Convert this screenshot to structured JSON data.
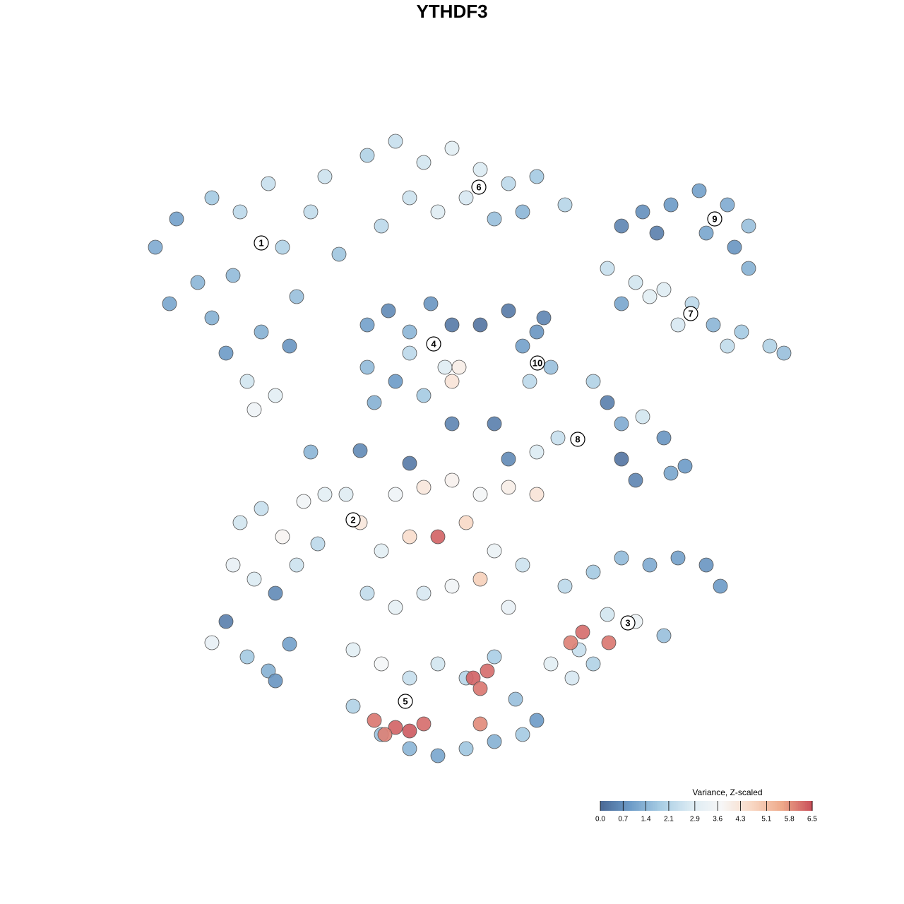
{
  "chart_data": {
    "type": "scatter",
    "title": "YTHDF3",
    "xlim": [
      0,
      128
    ],
    "ylim": [
      0,
      128
    ],
    "x": [
      22,
      25,
      28,
      30,
      32,
      35,
      34,
      38,
      40,
      42,
      44,
      46,
      48,
      33,
      37,
      39,
      36,
      24,
      30,
      41,
      52,
      56,
      60,
      64,
      68,
      72,
      76,
      80,
      58,
      62,
      70,
      66,
      74,
      54,
      88,
      91,
      95,
      99,
      103,
      106,
      100,
      93,
      104,
      106,
      86,
      90,
      94,
      98,
      101,
      105,
      109,
      111,
      92,
      103,
      88,
      96,
      52,
      55,
      58,
      61,
      64,
      52,
      56,
      60,
      63,
      65,
      64,
      58,
      53,
      68,
      74,
      76,
      78,
      75,
      77,
      72,
      84,
      86,
      88,
      91,
      94,
      97,
      90,
      88,
      95,
      79,
      76,
      72,
      34,
      37,
      40,
      43,
      46,
      49,
      51,
      33,
      36,
      39,
      42,
      45,
      35,
      38,
      30,
      80,
      84,
      88,
      92,
      96,
      100,
      102,
      86,
      90,
      94,
      82,
      78,
      81,
      84,
      82.5,
      86.2,
      80.8,
      56,
      60,
      64,
      68,
      72,
      76,
      54,
      58,
      62,
      66,
      70,
      74,
      52,
      56,
      60,
      64,
      68,
      72,
      50,
      54,
      58,
      62,
      66,
      70,
      50,
      54,
      58,
      62,
      66,
      70,
      74,
      76,
      53,
      56,
      60,
      54.5,
      58,
      67,
      68,
      69,
      68,
      64,
      70,
      58,
      44,
      51,
      32,
      39,
      41,
      73
    ],
    "y": [
      93,
      97,
      88,
      83,
      78,
      74,
      98,
      102,
      93,
      86,
      98,
      103,
      92,
      89,
      81,
      72,
      70,
      85,
      100,
      79,
      106,
      108,
      105,
      107,
      104,
      102,
      103,
      99,
      100,
      98,
      97,
      100,
      98,
      96,
      96,
      98,
      99,
      101,
      99,
      96,
      95,
      95,
      93,
      90,
      90,
      88,
      87,
      85,
      82,
      81,
      79,
      78,
      86,
      79,
      85,
      82,
      82,
      84,
      81,
      85,
      82,
      76,
      74,
      72,
      76,
      76,
      74,
      78,
      71,
      82,
      79,
      81,
      76,
      74,
      83,
      84,
      74,
      71,
      68,
      69,
      66,
      62,
      60,
      63,
      61,
      66,
      64,
      63,
      54,
      56,
      52,
      57,
      58,
      58,
      54,
      48,
      46,
      44,
      48,
      51,
      35,
      33,
      37,
      45,
      47,
      49,
      48,
      49,
      48,
      45,
      41,
      40,
      38,
      36,
      34,
      32,
      34,
      38.5,
      37,
      37,
      58,
      59,
      60,
      58,
      59,
      58,
      50,
      52,
      52,
      54,
      50,
      48,
      44,
      42,
      44,
      45,
      46,
      42,
      36,
      34,
      32,
      34,
      32,
      35,
      28,
      24,
      22,
      21,
      22,
      23,
      24,
      26,
      26,
      25,
      25.5,
      24,
      24.5,
      32,
      30.5,
      33,
      25.5,
      68,
      68,
      62.4,
      64,
      64.2,
      40,
      31.6,
      36.8,
      29
    ],
    "values": [
      1.2,
      1.0,
      1.4,
      1.3,
      0.9,
      2.6,
      2.2,
      2.4,
      2.0,
      1.6,
      2.3,
      2.5,
      1.7,
      1.5,
      1.3,
      3.0,
      3.4,
      1.1,
      1.8,
      0.8,
      2.0,
      2.4,
      2.6,
      3.0,
      2.8,
      2.2,
      1.8,
      2.1,
      2.5,
      2.9,
      1.6,
      2.7,
      1.4,
      2.2,
      0.5,
      0.7,
      0.9,
      1.0,
      1.2,
      1.6,
      1.1,
      0.4,
      0.8,
      1.3,
      2.4,
      2.6,
      2.9,
      2.2,
      1.4,
      1.8,
      2.0,
      1.6,
      3.0,
      2.3,
      1.1,
      2.7,
      1.0,
      0.6,
      1.4,
      0.8,
      0.3,
      1.5,
      0.9,
      1.8,
      2.9,
      4.0,
      4.3,
      2.2,
      1.3,
      0.2,
      1.0,
      0.8,
      1.6,
      2.2,
      0.5,
      0.3,
      2.0,
      0.4,
      1.2,
      2.6,
      0.8,
      0.9,
      0.5,
      0.2,
      1.1,
      2.4,
      2.8,
      0.6,
      2.6,
      2.4,
      3.8,
      3.5,
      3.0,
      2.9,
      4.2,
      3.2,
      2.8,
      0.6,
      2.5,
      2.2,
      1.8,
      1.3,
      3.2,
      2.2,
      1.8,
      1.5,
      1.2,
      1.0,
      0.8,
      0.9,
      2.6,
      3.3,
      1.6,
      2.4,
      3.0,
      2.7,
      2.0,
      6.2,
      6.1,
      6.0,
      3.4,
      4.2,
      3.9,
      3.6,
      4.0,
      4.3,
      3.0,
      4.5,
      6.3,
      4.6,
      3.3,
      2.5,
      2.3,
      3.1,
      2.7,
      3.5,
      4.8,
      3.2,
      3.0,
      3.6,
      2.4,
      2.6,
      2.1,
      1.9,
      2.0,
      1.6,
      1.4,
      1.1,
      1.7,
      1.3,
      1.8,
      0.9,
      6.1,
      6.3,
      6.2,
      6.0,
      6.4,
      6.3,
      6.1,
      6.2,
      5.9,
      0.5,
      0.4,
      0.3,
      1.4,
      0.6,
      0.4,
      0.8,
      1.0,
      1.6
    ],
    "clusters": [
      {
        "label": "1",
        "x": 37,
        "y": 93.6
      },
      {
        "label": "2",
        "x": 50,
        "y": 54.4
      },
      {
        "label": "3",
        "x": 88.9,
        "y": 39.8
      },
      {
        "label": "4",
        "x": 61.4,
        "y": 79.3
      },
      {
        "label": "5",
        "x": 57.4,
        "y": 28.7
      },
      {
        "label": "6",
        "x": 67.8,
        "y": 101.5
      },
      {
        "label": "7",
        "x": 97.8,
        "y": 83.6
      },
      {
        "label": "8",
        "x": 81.8,
        "y": 65.8
      },
      {
        "label": "9",
        "x": 101.2,
        "y": 97
      },
      {
        "label": "10",
        "x": 76.1,
        "y": 76.6
      }
    ],
    "colorbar": {
      "title": "Variance, Z-scaled",
      "clim": [
        0,
        6.5
      ],
      "ticks": [
        {
          "value": 0,
          "label": "0.0"
        },
        0.7,
        1.4,
        2.1,
        2.9,
        3.6,
        4.3,
        5.1,
        5.8,
        6.5
      ],
      "colors": [
        "#4a6896",
        "#6d9cc8",
        "#a8cde4",
        "#dcebf3",
        "#f7f7f7",
        "#f8d8c4",
        "#eea98a",
        "#c94f5a"
      ]
    }
  }
}
